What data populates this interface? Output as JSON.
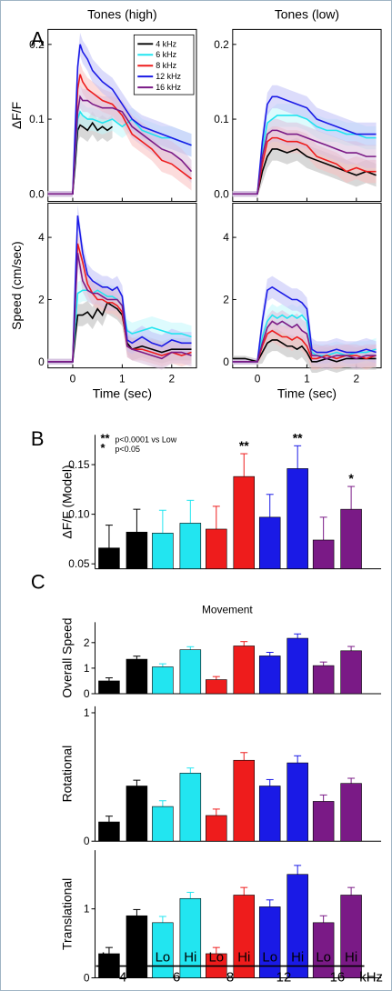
{
  "panel_labels": [
    "A",
    "B",
    "C"
  ],
  "colors": {
    "4 kHz": "#000000",
    "6 kHz": "#22e5f0",
    "8 kHz": "#ee1c1c",
    "12 kHz": "#1a1ae6",
    "16 kHz": "#7a1a86"
  },
  "chart_data": [
    {
      "id": "A_df_high",
      "type": "line",
      "title": "Tones (high)",
      "ylabel": "ΔF/F",
      "xlabel": "",
      "xlim": [
        -0.5,
        2.5
      ],
      "ylim": [
        -0.01,
        0.22
      ],
      "yticks": [
        "0.0",
        "0.1",
        "0.2"
      ],
      "legend_position": "top-right",
      "series": [
        {
          "name": "4 kHz",
          "x": [
            -0.5,
            -0.25,
            0,
            0.05,
            0.1,
            0.15,
            0.2,
            0.3,
            0.4,
            0.5,
            0.6,
            0.7,
            0.8
          ],
          "y": [
            0.0,
            0.0,
            0.0,
            0.04,
            0.085,
            0.092,
            0.09,
            0.085,
            0.095,
            0.085,
            0.09,
            0.085,
            0.09
          ]
        },
        {
          "name": "6 kHz",
          "x": [
            -0.5,
            -0.25,
            0,
            0.05,
            0.1,
            0.15,
            0.2,
            0.3,
            0.4,
            0.6,
            0.8,
            1.0,
            1.2,
            1.4,
            1.6,
            1.8,
            2.0,
            2.2,
            2.4
          ],
          "y": [
            0.0,
            0.0,
            0.0,
            0.05,
            0.1,
            0.11,
            0.105,
            0.1,
            0.1,
            0.095,
            0.1,
            0.09,
            0.1,
            0.085,
            0.08,
            0.075,
            0.075,
            0.07,
            0.065
          ]
        },
        {
          "name": "8 kHz",
          "x": [
            -0.5,
            -0.25,
            0,
            0.05,
            0.1,
            0.15,
            0.2,
            0.3,
            0.4,
            0.6,
            0.8,
            1.0,
            1.2,
            1.4,
            1.6,
            1.8,
            2.0,
            2.2,
            2.4
          ],
          "y": [
            0.0,
            0.0,
            0.0,
            0.07,
            0.14,
            0.16,
            0.15,
            0.14,
            0.135,
            0.125,
            0.12,
            0.105,
            0.08,
            0.07,
            0.06,
            0.045,
            0.04,
            0.03,
            0.02
          ]
        },
        {
          "name": "12 kHz",
          "x": [
            -0.5,
            -0.25,
            0,
            0.05,
            0.1,
            0.15,
            0.2,
            0.3,
            0.4,
            0.6,
            0.8,
            1.0,
            1.2,
            1.4,
            1.6,
            1.8,
            2.0,
            2.2,
            2.4
          ],
          "y": [
            0.0,
            0.0,
            0.0,
            0.09,
            0.17,
            0.2,
            0.19,
            0.18,
            0.165,
            0.15,
            0.14,
            0.12,
            0.1,
            0.09,
            0.085,
            0.08,
            0.075,
            0.07,
            0.065
          ]
        },
        {
          "name": "16 kHz",
          "x": [
            -0.5,
            -0.25,
            0,
            0.05,
            0.1,
            0.15,
            0.2,
            0.3,
            0.4,
            0.6,
            0.8,
            1.0,
            1.2,
            1.4,
            1.6,
            1.8,
            2.0,
            2.2,
            2.4
          ],
          "y": [
            0.0,
            0.0,
            0.0,
            0.055,
            0.11,
            0.13,
            0.125,
            0.125,
            0.12,
            0.115,
            0.115,
            0.11,
            0.09,
            0.08,
            0.07,
            0.06,
            0.055,
            0.045,
            0.03
          ]
        }
      ]
    },
    {
      "id": "A_df_low",
      "type": "line",
      "title": "Tones (low)",
      "ylabel": "",
      "xlabel": "",
      "xlim": [
        -0.5,
        2.5
      ],
      "ylim": [
        -0.01,
        0.22
      ],
      "yticks": [
        "0.0",
        "0.1",
        "0.2"
      ],
      "series": [
        {
          "name": "4 kHz",
          "x": [
            -0.5,
            -0.25,
            0,
            0.1,
            0.2,
            0.3,
            0.4,
            0.6,
            0.8,
            1.0,
            1.2,
            1.4,
            1.6,
            1.8,
            2.0,
            2.2,
            2.4
          ],
          "y": [
            0.0,
            0.0,
            0.0,
            0.03,
            0.05,
            0.06,
            0.06,
            0.055,
            0.06,
            0.05,
            0.045,
            0.04,
            0.035,
            0.03,
            0.025,
            0.03,
            0.025
          ]
        },
        {
          "name": "6 kHz",
          "x": [
            -0.5,
            -0.25,
            0,
            0.1,
            0.2,
            0.3,
            0.4,
            0.6,
            0.8,
            1.0,
            1.2,
            1.4,
            1.6,
            1.8,
            2.0,
            2.2,
            2.4
          ],
          "y": [
            0.0,
            0.0,
            0.0,
            0.06,
            0.095,
            0.1,
            0.105,
            0.105,
            0.105,
            0.1,
            0.09,
            0.085,
            0.085,
            0.08,
            0.08,
            0.075,
            0.075
          ]
        },
        {
          "name": "8 kHz",
          "x": [
            -0.5,
            -0.25,
            0,
            0.1,
            0.2,
            0.3,
            0.4,
            0.6,
            0.8,
            1.0,
            1.2,
            1.4,
            1.6,
            1.8,
            2.0,
            2.2,
            2.4
          ],
          "y": [
            0.0,
            0.0,
            0.0,
            0.04,
            0.07,
            0.075,
            0.075,
            0.07,
            0.07,
            0.065,
            0.05,
            0.045,
            0.04,
            0.03,
            0.035,
            0.03,
            0.03
          ]
        },
        {
          "name": "12 kHz",
          "x": [
            -0.5,
            -0.25,
            0,
            0.1,
            0.2,
            0.3,
            0.4,
            0.6,
            0.8,
            1.0,
            1.2,
            1.4,
            1.6,
            1.8,
            2.0,
            2.2,
            2.4
          ],
          "y": [
            0.0,
            0.0,
            0.0,
            0.07,
            0.12,
            0.13,
            0.13,
            0.125,
            0.12,
            0.115,
            0.1,
            0.095,
            0.09,
            0.085,
            0.08,
            0.08,
            0.08
          ]
        },
        {
          "name": "16 kHz",
          "x": [
            -0.5,
            -0.25,
            0,
            0.1,
            0.2,
            0.3,
            0.4,
            0.6,
            0.8,
            1.0,
            1.2,
            1.4,
            1.6,
            1.8,
            2.0,
            2.2,
            2.4
          ],
          "y": [
            0.0,
            0.0,
            0.0,
            0.05,
            0.08,
            0.085,
            0.085,
            0.08,
            0.08,
            0.075,
            0.07,
            0.065,
            0.06,
            0.055,
            0.055,
            0.05,
            0.05
          ]
        }
      ]
    },
    {
      "id": "A_speed_high",
      "type": "line",
      "title": "",
      "ylabel": "Speed (cm/sec)",
      "xlabel": "Time (sec)",
      "xlim": [
        -0.5,
        2.5
      ],
      "ylim": [
        -0.2,
        5.1
      ],
      "xticks": [
        "0",
        "1",
        "2"
      ],
      "yticks": [
        "0",
        "2",
        "4"
      ],
      "series": [
        {
          "name": "4 kHz",
          "x": [
            -0.5,
            -0.25,
            0,
            0.05,
            0.1,
            0.2,
            0.3,
            0.4,
            0.5,
            0.6,
            0.7,
            0.8,
            0.9,
            1.0,
            1.1,
            1.2,
            1.4,
            1.6,
            1.8,
            2.0,
            2.2,
            2.4
          ],
          "y": [
            0.0,
            0.0,
            0.0,
            0.8,
            1.5,
            1.5,
            1.6,
            1.4,
            1.7,
            1.5,
            1.9,
            1.8,
            1.7,
            1.5,
            0.6,
            0.4,
            0.5,
            0.4,
            0.3,
            0.4,
            0.4,
            0.4
          ]
        },
        {
          "name": "6 kHz",
          "x": [
            -0.5,
            -0.25,
            0,
            0.05,
            0.1,
            0.2,
            0.3,
            0.4,
            0.5,
            0.6,
            0.7,
            0.8,
            0.9,
            1.0,
            1.1,
            1.2,
            1.4,
            1.6,
            1.8,
            2.0,
            2.2,
            2.4
          ],
          "y": [
            0.0,
            0.0,
            0.0,
            1.2,
            2.2,
            2.3,
            2.3,
            2.2,
            2.3,
            2.2,
            2.1,
            2.1,
            2.0,
            1.8,
            1.0,
            0.9,
            1.0,
            1.1,
            1.0,
            0.9,
            0.9,
            0.8
          ]
        },
        {
          "name": "8 kHz",
          "x": [
            -0.5,
            -0.25,
            0,
            0.05,
            0.1,
            0.2,
            0.3,
            0.4,
            0.5,
            0.6,
            0.7,
            0.8,
            0.9,
            1.0,
            1.1,
            1.2,
            1.4,
            1.6,
            1.8,
            2.0,
            2.2,
            2.4
          ],
          "y": [
            0.0,
            0.0,
            0.0,
            2.0,
            3.8,
            3.2,
            2.5,
            2.2,
            2.0,
            2.0,
            1.9,
            1.9,
            1.8,
            1.6,
            0.5,
            0.4,
            0.4,
            0.3,
            0.2,
            0.3,
            0.2,
            0.3
          ]
        },
        {
          "name": "12 kHz",
          "x": [
            -0.5,
            -0.25,
            0,
            0.05,
            0.1,
            0.2,
            0.3,
            0.4,
            0.5,
            0.6,
            0.7,
            0.8,
            0.9,
            1.0,
            1.1,
            1.2,
            1.4,
            1.6,
            1.8,
            2.0,
            2.2,
            2.4
          ],
          "y": [
            0.0,
            0.0,
            0.0,
            2.5,
            4.7,
            3.5,
            2.8,
            2.6,
            2.5,
            2.4,
            2.4,
            2.3,
            2.4,
            2.1,
            0.7,
            0.6,
            0.8,
            0.6,
            0.5,
            0.7,
            0.6,
            0.6
          ]
        },
        {
          "name": "16 kHz",
          "x": [
            -0.5,
            -0.25,
            0,
            0.05,
            0.1,
            0.2,
            0.3,
            0.4,
            0.5,
            0.6,
            0.7,
            0.8,
            0.9,
            1.0,
            1.1,
            1.2,
            1.4,
            1.6,
            1.8,
            2.0,
            2.2,
            2.4
          ],
          "y": [
            0.0,
            0.0,
            0.0,
            1.8,
            3.5,
            2.6,
            2.3,
            2.2,
            2.2,
            2.1,
            2.0,
            2.0,
            2.0,
            1.8,
            0.5,
            0.4,
            0.3,
            0.2,
            0.1,
            0.3,
            0.3,
            0.2
          ]
        }
      ]
    },
    {
      "id": "A_speed_low",
      "type": "line",
      "title": "",
      "ylabel": "",
      "xlabel": "Time (sec)",
      "xlim": [
        -0.5,
        2.5
      ],
      "ylim": [
        -0.2,
        5.1
      ],
      "xticks": [
        "0",
        "1",
        "2"
      ],
      "yticks": [
        "0",
        "2",
        "4"
      ],
      "series": [
        {
          "name": "4 kHz",
          "x": [
            -0.5,
            -0.25,
            0,
            0.1,
            0.2,
            0.3,
            0.4,
            0.5,
            0.6,
            0.7,
            0.8,
            0.9,
            1.0,
            1.1,
            1.2,
            1.4,
            1.6,
            1.8,
            2.0,
            2.2,
            2.4
          ],
          "y": [
            0.1,
            0.1,
            0.0,
            0.3,
            0.6,
            0.7,
            0.7,
            0.6,
            0.5,
            0.5,
            0.4,
            0.5,
            0.3,
            0.0,
            0.0,
            0.1,
            0.0,
            0.1,
            0.1,
            0.1,
            0.1
          ]
        },
        {
          "name": "6 kHz",
          "x": [
            -0.5,
            -0.25,
            0,
            0.1,
            0.2,
            0.3,
            0.4,
            0.5,
            0.6,
            0.7,
            0.8,
            0.9,
            1.0,
            1.1,
            1.2,
            1.4,
            1.6,
            1.8,
            2.0,
            2.2,
            2.4
          ],
          "y": [
            0.0,
            0.0,
            0.0,
            0.8,
            1.3,
            1.5,
            1.4,
            1.5,
            1.4,
            1.5,
            1.4,
            1.5,
            1.3,
            0.3,
            0.2,
            0.2,
            0.3,
            0.2,
            0.3,
            0.3,
            0.4
          ]
        },
        {
          "name": "8 kHz",
          "x": [
            -0.5,
            -0.25,
            0,
            0.1,
            0.2,
            0.3,
            0.4,
            0.5,
            0.6,
            0.7,
            0.8,
            0.9,
            1.0,
            1.1,
            1.2,
            1.4,
            1.6,
            1.8,
            2.0,
            2.2,
            2.4
          ],
          "y": [
            0.0,
            0.0,
            0.0,
            0.5,
            0.9,
            1.0,
            0.9,
            0.8,
            0.8,
            0.7,
            0.8,
            0.7,
            0.5,
            0.1,
            0.1,
            0.2,
            0.1,
            0.2,
            0.2,
            0.1,
            0.2
          ]
        },
        {
          "name": "12 kHz",
          "x": [
            -0.5,
            -0.25,
            0,
            0.1,
            0.2,
            0.3,
            0.4,
            0.5,
            0.6,
            0.7,
            0.8,
            0.9,
            1.0,
            1.1,
            1.2,
            1.4,
            1.6,
            1.8,
            2.0,
            2.2,
            2.4
          ],
          "y": [
            0.0,
            0.0,
            0.0,
            1.3,
            2.3,
            2.4,
            2.3,
            2.2,
            2.1,
            2.0,
            2.0,
            1.9,
            1.7,
            0.4,
            0.3,
            0.3,
            0.4,
            0.3,
            0.3,
            0.4,
            0.3
          ]
        },
        {
          "name": "16 kHz",
          "x": [
            -0.5,
            -0.25,
            0,
            0.1,
            0.2,
            0.3,
            0.4,
            0.5,
            0.6,
            0.7,
            0.8,
            0.9,
            1.0,
            1.1,
            1.2,
            1.4,
            1.6,
            1.8,
            2.0,
            2.2,
            2.4
          ],
          "y": [
            0.0,
            0.0,
            0.0,
            0.6,
            1.1,
            1.3,
            1.2,
            1.3,
            1.2,
            1.1,
            1.2,
            1.0,
            0.9,
            0.2,
            0.2,
            0.1,
            0.2,
            0.2,
            0.1,
            0.2,
            0.2
          ]
        }
      ]
    },
    {
      "id": "B",
      "type": "bar",
      "title": "",
      "ylabel": "ΔF/F (Model)",
      "ylim": [
        0.045,
        0.18
      ],
      "yticks": [
        "0.05",
        "0.10",
        "0.15"
      ],
      "annotations": {
        "double_star": "p<0.0001 vs Low",
        "single_star": "p<0.05"
      },
      "values": [
        0.066,
        0.082,
        0.081,
        0.091,
        0.085,
        0.138,
        0.097,
        0.146,
        0.074,
        0.105
      ],
      "errors": [
        0.023,
        0.023,
        0.023,
        0.023,
        0.023,
        0.023,
        0.023,
        0.023,
        0.023,
        0.023
      ],
      "significance": [
        "",
        "",
        "",
        "",
        "",
        "**",
        "",
        "**",
        "",
        "*"
      ]
    },
    {
      "id": "C_overall",
      "type": "bar",
      "title": "Movement",
      "ylabel": "Overall Speed",
      "ylim": [
        0,
        2.8
      ],
      "yticks": [
        "0",
        "1",
        "2"
      ],
      "values": [
        0.5,
        1.35,
        1.05,
        1.72,
        0.55,
        1.87,
        1.48,
        2.17,
        1.1,
        1.68
      ],
      "errors": [
        0.12,
        0.12,
        0.12,
        0.12,
        0.12,
        0.17,
        0.14,
        0.17,
        0.14,
        0.17
      ]
    },
    {
      "id": "C_rotational",
      "type": "bar",
      "title": "",
      "ylabel": "Rotational",
      "ylim": [
        0,
        1.05
      ],
      "yticks": [
        "0",
        "1"
      ],
      "values": [
        0.15,
        0.43,
        0.27,
        0.53,
        0.2,
        0.63,
        0.43,
        0.61,
        0.31,
        0.45
      ],
      "errors": [
        0.045,
        0.045,
        0.045,
        0.04,
        0.05,
        0.06,
        0.05,
        0.055,
        0.05,
        0.04
      ]
    },
    {
      "id": "C_translational",
      "type": "bar",
      "title": "",
      "ylabel": "Translational",
      "ylim": [
        0,
        1.85
      ],
      "yticks": [
        "0",
        "1"
      ],
      "values": [
        0.35,
        0.9,
        0.8,
        1.15,
        0.35,
        1.2,
        1.03,
        1.5,
        0.8,
        1.2
      ],
      "errors": [
        0.09,
        0.09,
        0.09,
        0.09,
        0.09,
        0.11,
        0.1,
        0.13,
        0.1,
        0.11
      ]
    }
  ],
  "bottom_axis": {
    "pair_labels": [
      "Lo",
      "Hi"
    ],
    "groups": [
      "4",
      "6",
      "8",
      "12",
      "16"
    ],
    "unit": "kHz"
  }
}
